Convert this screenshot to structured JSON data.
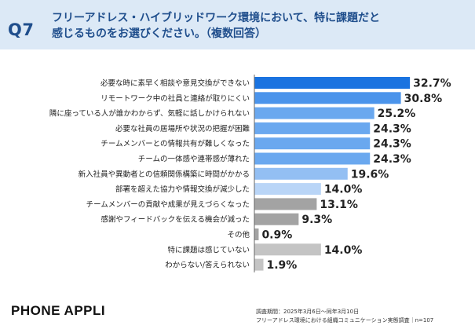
{
  "header": {
    "question_label": "Q7",
    "question_text_line1": "フリーアドレス・ハイブリッドワーク環境において、特に課題だと",
    "question_text_line2": "感じるものをお選びください。（複数回答）"
  },
  "chart_data": {
    "type": "bar",
    "orientation": "horizontal",
    "title": "",
    "xlabel": "",
    "ylabel": "",
    "xlim": [
      0,
      34
    ],
    "value_suffix": "%",
    "categories": [
      "必要な時に素早く相談や意見交換ができない",
      "リモートワーク中の社員と連絡が取りにくい",
      "隣に座っている人が誰かわからず、気軽に話しかけられない",
      "必要な社員の居場所や状況の把握が困難",
      "チームメンバーとの情報共有が難しくなった",
      "チームの一体感や連帯感が薄れた",
      "新入社員や異動者との信頼関係構築に時間がかかる",
      "部署を超えた協力や情報交換が減少した",
      "チームメンバーの貢献や成果が見えづらくなった",
      "感謝やフィードバックを伝える機会が減った",
      "その他",
      "特に課題は感じていない",
      "わからない/答えられない"
    ],
    "values": [
      32.7,
      30.8,
      25.2,
      24.3,
      24.3,
      24.3,
      19.6,
      14.0,
      13.1,
      9.3,
      0.9,
      14.0,
      1.9
    ],
    "value_labels": [
      "32.7%",
      "30.8%",
      "25.2%",
      "24.3%",
      "24.3%",
      "24.3%",
      "19.6%",
      "14.0%",
      "13.1%",
      "9.3%",
      "0.9%",
      "14.0%",
      "1.9%"
    ],
    "bar_colors": [
      "#1a73e0",
      "#4b94eb",
      "#6aa8ef",
      "#6aa8ef",
      "#6aa8ef",
      "#6aa8ef",
      "#93bff3",
      "#b9d5f7",
      "#a3a3a3",
      "#a3a3a3",
      "#a3a3a3",
      "#c4c4c4",
      "#c4c4c4"
    ]
  },
  "footer": {
    "brand": "PHONE APPLI",
    "note_line1": "調査期間：2025年3月6日〜同年3月10日",
    "note_line2": "フリーアドレス環境における組織コミュニケーション実態調査｜n=107"
  }
}
